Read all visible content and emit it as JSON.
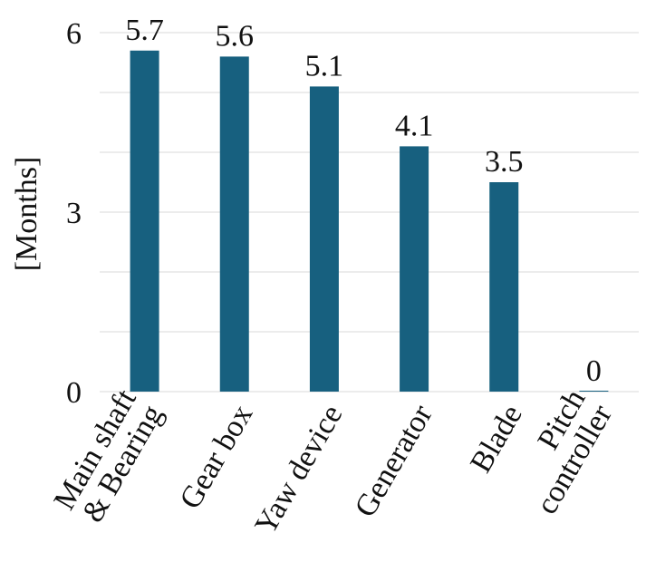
{
  "chart_data": {
    "type": "bar",
    "title": "",
    "xlabel": "",
    "ylabel": "[Months]",
    "ylim": [
      0,
      6
    ],
    "yticks": [
      0,
      3,
      6
    ],
    "grid": true,
    "legend": "none",
    "categories": [
      [
        "Main shaft",
        "& Bearing"
      ],
      [
        "Gear box"
      ],
      [
        "Yaw device"
      ],
      [
        "Generator"
      ],
      [
        "Blade"
      ],
      [
        "Pitch",
        "controller"
      ]
    ],
    "values": [
      5.7,
      5.6,
      5.1,
      4.1,
      3.5,
      0
    ],
    "data_labels": [
      "5.7",
      "5.6",
      "5.1",
      "4.1",
      "3.5",
      "0"
    ],
    "bar_color": "#17607f",
    "grid_color": "#d9d9d9"
  }
}
